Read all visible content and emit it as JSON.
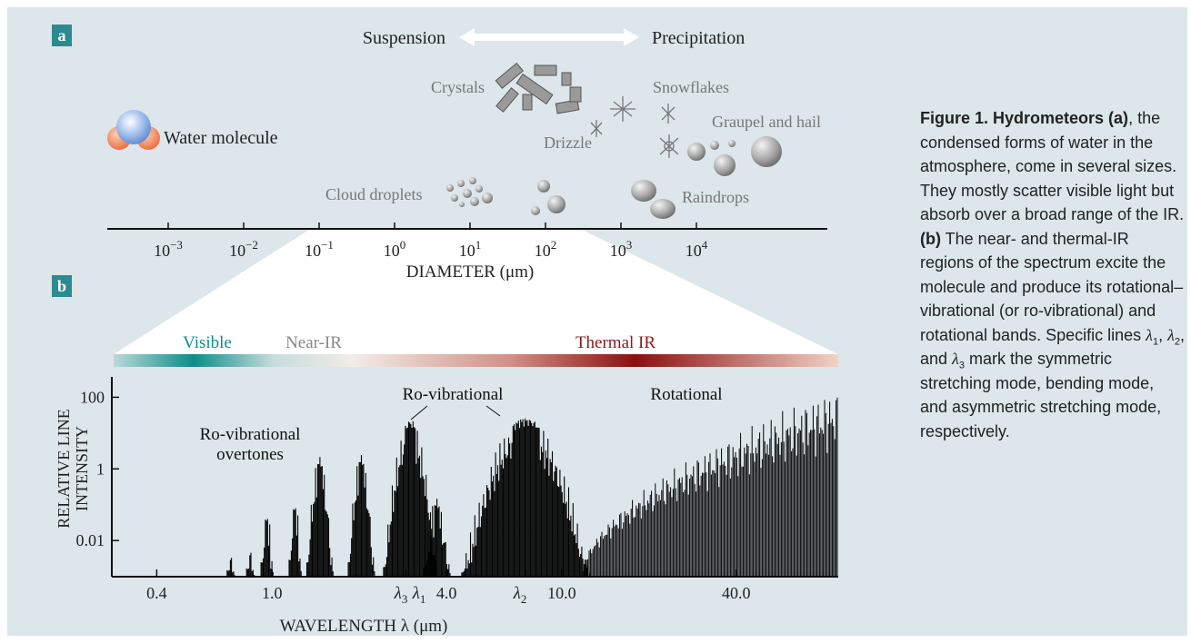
{
  "panel_a": {
    "label": "a",
    "arrow_left": "Suspension",
    "arrow_right": "Precipitation",
    "items": {
      "water_molecule": "Water molecule",
      "crystals": "Crystals",
      "snowflakes": "Snowflakes",
      "graupel": "Graupel and hail",
      "drizzle": "Drizzle",
      "cloud_droplets": "Cloud droplets",
      "raindrops": "Raindrops"
    },
    "axis_label": "DIAMETER (μm)",
    "ticks": [
      {
        "base": "10",
        "exponent": "−3"
      },
      {
        "base": "10",
        "exponent": "−2"
      },
      {
        "base": "10",
        "exponent": "−1"
      },
      {
        "base": "10",
        "exponent": "0"
      },
      {
        "base": "10",
        "exponent": "1"
      },
      {
        "base": "10",
        "exponent": "2"
      },
      {
        "base": "10",
        "exponent": "3"
      },
      {
        "base": "10",
        "exponent": "4"
      }
    ]
  },
  "panel_b": {
    "label": "b",
    "bands": {
      "visible": "Visible",
      "near_ir": "Near-IR",
      "thermal_ir": "Thermal IR"
    },
    "y_label": [
      "RELATIVE LINE",
      "INTENSITY"
    ],
    "x_label": "WAVELENGTH λ (μm)",
    "log_scale": true,
    "ylim": [
      0.00098,
      370
    ],
    "yticks": [
      100,
      1,
      0.01
    ],
    "xlim": [
      0.28,
      90
    ],
    "xticks": [
      0.4,
      {
        "value": 1,
        "label": "1.0"
      },
      {
        "value": 4,
        "label": "4.0"
      },
      {
        "value": 10,
        "label": "10.0"
      },
      {
        "value": 40,
        "label": "40.0"
      }
    ],
    "lambda_marks": [
      {
        "symbol": "λ",
        "sub": "3"
      },
      {
        "symbol": "λ",
        "sub": "1"
      },
      {
        "symbol": "λ",
        "sub": "2"
      }
    ],
    "annotations": {
      "overtones": [
        "Ro-vibrational",
        "overtones"
      ],
      "rovibrational": "Ro-vibrational",
      "rotational": "Rotational"
    },
    "spectrum": {
      "color": "#000000",
      "bands": [
        {
          "center": 0.72,
          "peak": 0.0035,
          "halfwidth": 0.01
        },
        {
          "center": 0.84,
          "peak": 0.005,
          "halfwidth": 0.01
        },
        {
          "center": 0.96,
          "peak": 0.06,
          "halfwidth": 0.015
        },
        {
          "center": 1.2,
          "peak": 0.12,
          "halfwidth": 0.015
        },
        {
          "center": 1.46,
          "peak": 2.2,
          "halfwidth": 0.03
        },
        {
          "center": 2.03,
          "peak": 2.5,
          "halfwidth": 0.03
        },
        {
          "center": 3.0,
          "peak": 26,
          "halfwidth": 0.06
        },
        {
          "center": 3.7,
          "peak": 0.15,
          "halfwidth": 0.03
        },
        {
          "center": 7.5,
          "peak": 30,
          "halfwidth": 0.14
        }
      ],
      "rotational": {
        "start": 11.7,
        "end": 90,
        "peak": 200
      }
    }
  },
  "caption": [
    {
      "text": "Figure 1. Hydrometeors (a)",
      "style": "bold"
    },
    {
      "text": ", the condensed forms of water in the atmosphere, come in several sizes. They mostly scatter visible light but absorb over a broad range of the IR. "
    },
    {
      "text": "(b)",
      "style": "bold"
    },
    {
      "text": " The near- and thermal-IR regions of the spectrum excite the molecule and produce its rotational–vibrational (or ro-vibrational) and rotational bands. Specific lines "
    },
    {
      "text": "λ",
      "style": "italic"
    },
    {
      "text": "1",
      "style": "sub"
    },
    {
      "text": ", "
    },
    {
      "text": "λ",
      "style": "italic"
    },
    {
      "text": "2",
      "style": "sub"
    },
    {
      "text": ", and "
    },
    {
      "text": "λ",
      "style": "italic"
    },
    {
      "text": "3",
      "style": "sub"
    },
    {
      "text": " mark the symmetric stretching mode, bending mode, and asymmetric stretching mode, respectively."
    }
  ]
}
